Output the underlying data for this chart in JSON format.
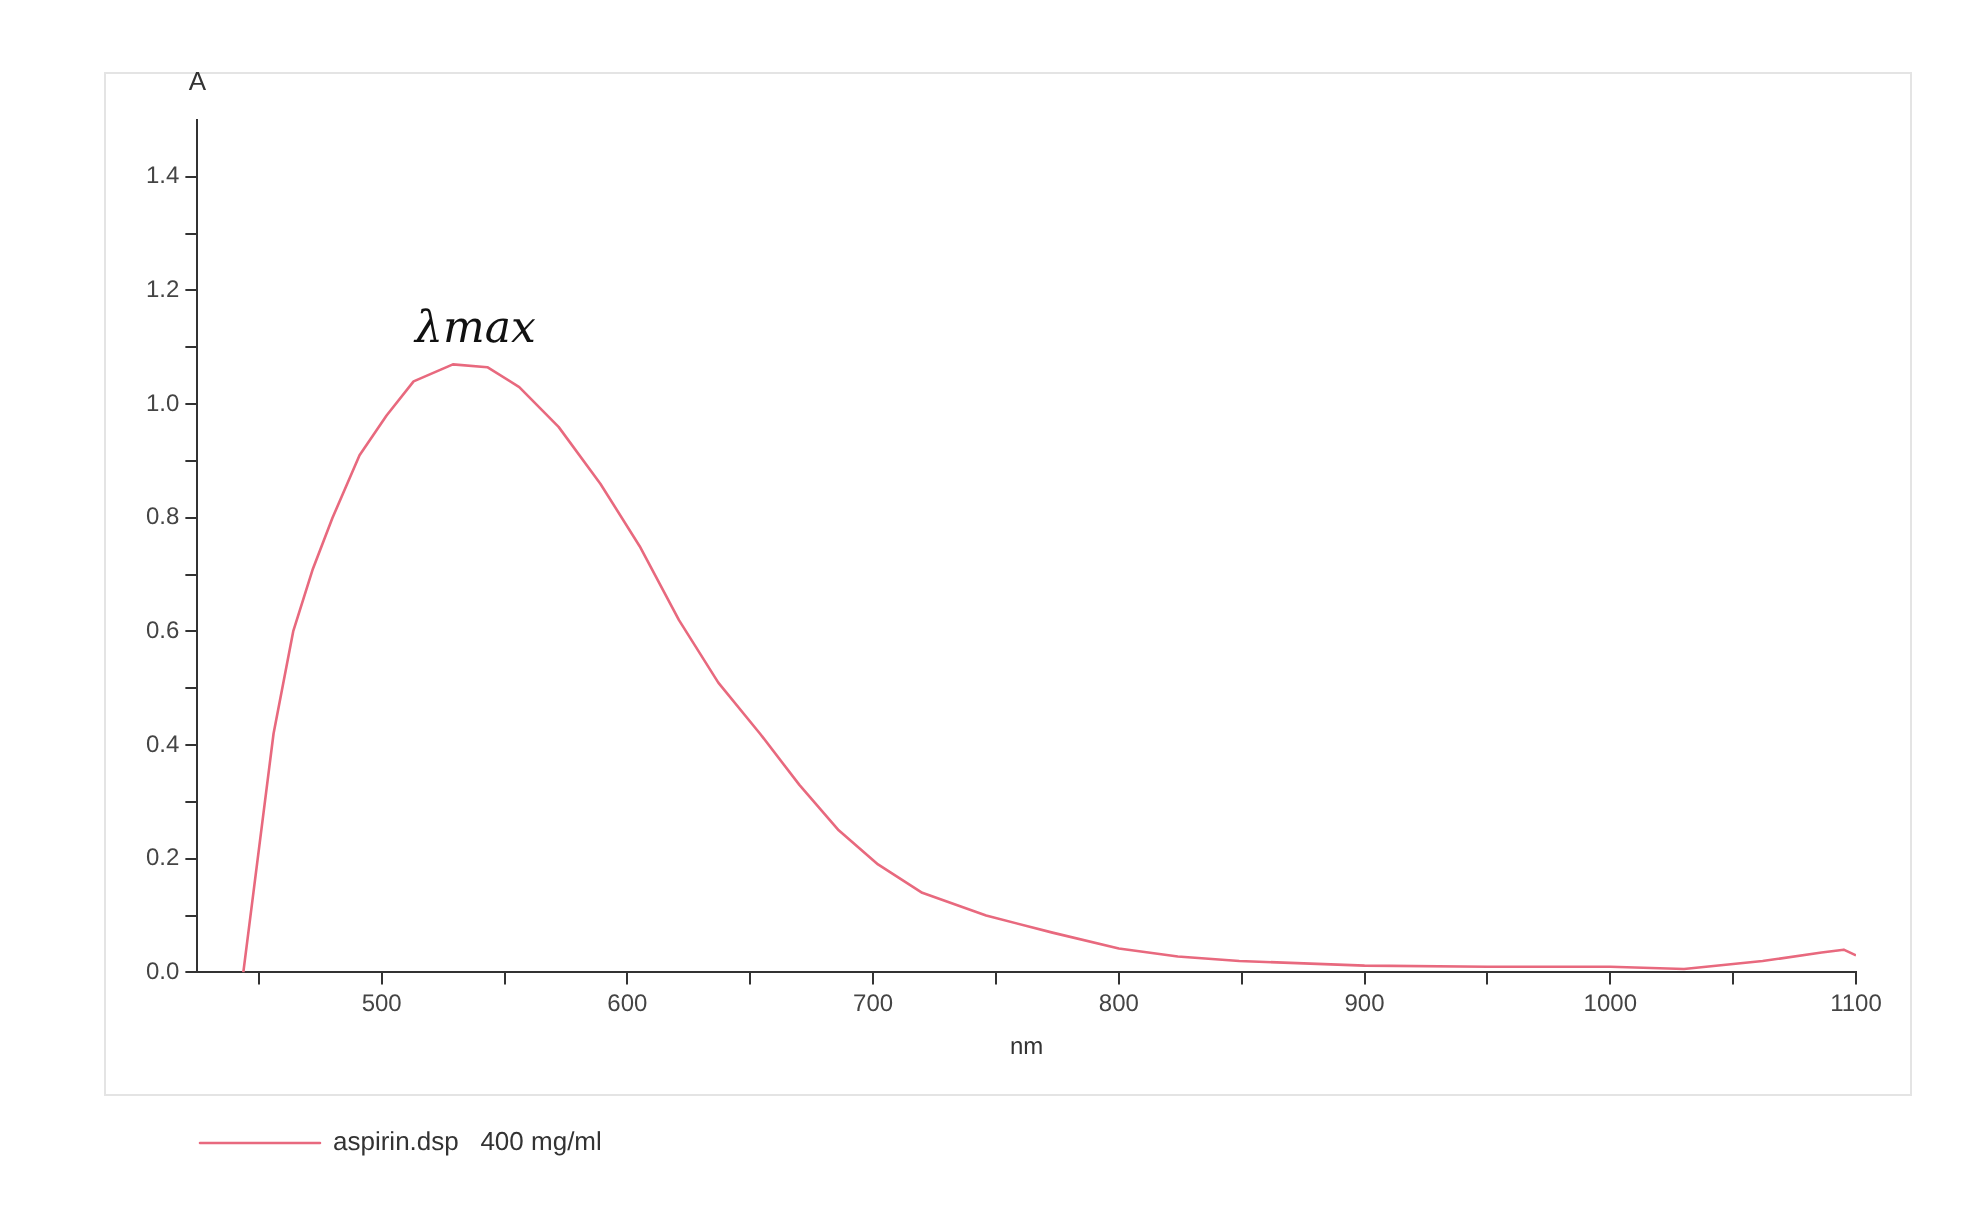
{
  "chart_data": {
    "type": "line",
    "xlabel": "nm",
    "ylabel": "A",
    "x": [
      443.7,
      447.8,
      456,
      464,
      472,
      480,
      491,
      502,
      513,
      529,
      543,
      556,
      572,
      589,
      605,
      621,
      637,
      654,
      670,
      686,
      702,
      720,
      746,
      773,
      800,
      824,
      849,
      900,
      950,
      1000,
      1030,
      1062,
      1086,
      1095,
      1100
    ],
    "series": [
      {
        "name": "aspirin.dsp   400 mg/ml",
        "color": "#e8697e",
        "values": [
          0,
          0.14,
          0.42,
          0.6,
          0.71,
          0.8,
          0.91,
          0.98,
          1.04,
          1.07,
          1.065,
          1.03,
          0.96,
          0.86,
          0.75,
          0.62,
          0.51,
          0.42,
          0.33,
          0.25,
          0.19,
          0.14,
          0.1,
          0.07,
          0.042,
          0.028,
          0.02,
          0.012,
          0.01,
          0.01,
          0.006,
          0.02,
          0.035,
          0.04,
          0.03
        ]
      }
    ],
    "xlim": [
      425,
      1100
    ],
    "ylim": [
      0,
      1.5
    ],
    "xticks": [
      {
        "value": 450,
        "label": null
      },
      500,
      {
        "value": 550,
        "label": null
      },
      600,
      {
        "value": 650,
        "label": null
      },
      700,
      {
        "value": 750,
        "label": null
      },
      800,
      {
        "value": 850,
        "label": null
      },
      900,
      {
        "value": 950,
        "label": null
      },
      1000,
      {
        "value": 1050,
        "label": null
      },
      1100
    ],
    "yticks": [
      {
        "value": 0,
        "label": "0.0"
      },
      {
        "value": 0.1,
        "label": null
      },
      0.2,
      {
        "value": 0.3,
        "label": null
      },
      0.4,
      {
        "value": 0.5,
        "label": null
      },
      0.6,
      {
        "value": 0.7,
        "label": null
      },
      0.8,
      {
        "value": 0.9,
        "label": null
      },
      {
        "value": 1,
        "label": "1.0"
      },
      {
        "value": 1.1,
        "label": null
      },
      1.2,
      {
        "value": 1.3,
        "label": null
      },
      1.4
    ],
    "annotations": [
      {
        "text": "λmax",
        "x": 530,
        "y": 1.07
      }
    ],
    "grid": false,
    "legend": "bottom left",
    "marker": "none",
    "line_style": "solid"
  }
}
